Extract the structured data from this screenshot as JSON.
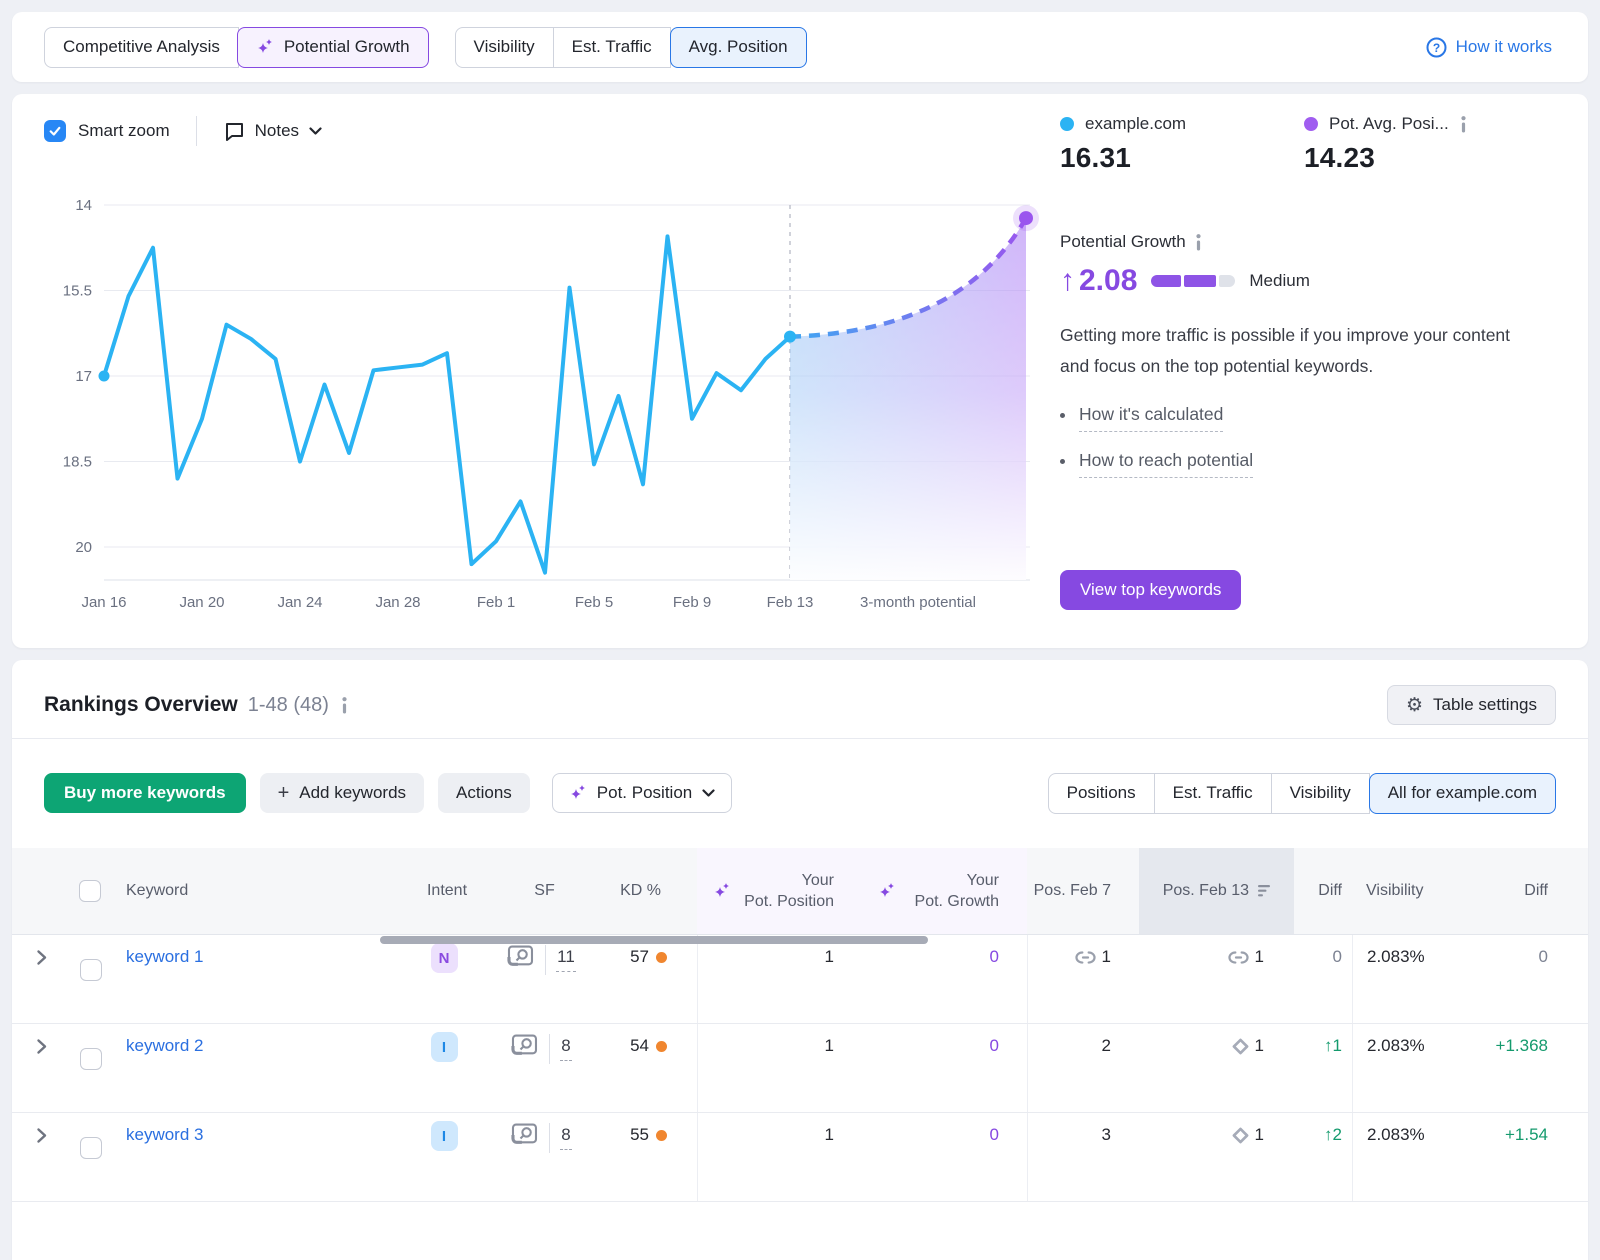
{
  "colors": {
    "accent_purple": "#8649e1",
    "accent_blue": "#2977e6",
    "chart_blue": "#2bb3f3",
    "chart_purple": "#9a55ee",
    "buy_green": "#0da574",
    "diff_green": "#149a6d",
    "kd_orange": "#f0862f"
  },
  "top_toolbar": {
    "analysis_tabs": [
      {
        "label": "Competitive Analysis",
        "selected": false
      },
      {
        "label": "Potential Growth",
        "selected": true
      }
    ],
    "metric_tabs": [
      {
        "label": "Visibility",
        "selected": false
      },
      {
        "label": "Est. Traffic",
        "selected": false
      },
      {
        "label": "Avg. Position",
        "selected": true
      }
    ],
    "help_link": "How it works"
  },
  "chart_section": {
    "smart_zoom_label": "Smart zoom",
    "notes_label": "Notes",
    "legend": [
      {
        "name": "example.com",
        "value": "16.31",
        "color": "#2bb3f3"
      },
      {
        "name": "Pot. Avg. Posi...",
        "value": "14.23",
        "color": "#a05df0"
      }
    ],
    "growth": {
      "title": "Potential Growth",
      "arrow": "↑",
      "value": "2.08",
      "level": "Medium",
      "description": "Getting more traffic is possible if you improve your content and focus on the top potential keywords.",
      "links": [
        "How it's calculated",
        "How to reach potential"
      ],
      "cta": "View top keywords"
    }
  },
  "chart_data": {
    "type": "line",
    "title": "Avg. Position trend with 3-month potential",
    "y_inverted": true,
    "y_ticks": [
      "14",
      "15.5",
      "17",
      "18.5",
      "20"
    ],
    "x_ticks": [
      "Jan 16",
      "Jan 20",
      "Jan 24",
      "Jan 28",
      "Feb 1",
      "Feb 5",
      "Feb 9",
      "Feb 13",
      "3-month potential"
    ],
    "series": [
      {
        "name": "example.com",
        "color": "#2bb3f3",
        "values": [
          17.0,
          15.6,
          14.75,
          18.8,
          17.75,
          16.1,
          16.35,
          16.7,
          18.5,
          17.15,
          18.35,
          16.9,
          16.85,
          16.8,
          16.6,
          20.3,
          19.9,
          19.2,
          20.45,
          15.45,
          18.55,
          17.35,
          18.9,
          14.55,
          17.75,
          16.95,
          17.25,
          16.7,
          16.31
        ]
      },
      {
        "name": "Pot. Avg. Position",
        "type": "projection",
        "color": "#9a55ee",
        "from": 16.31,
        "to": 14.23,
        "start_label": "Feb 13",
        "end_label": "3-month potential"
      }
    ],
    "current_value": 16.31,
    "potential_value": 14.23
  },
  "rankings": {
    "title": "Rankings Overview",
    "range": "1-48 (48)",
    "table_settings": "Table settings",
    "buy_button": "Buy more keywords",
    "add_button": "Add keywords",
    "actions_button": "Actions",
    "pot_position_dropdown": "Pot. Position",
    "filter_tabs": [
      {
        "label": "Positions",
        "selected": false
      },
      {
        "label": "Est. Traffic",
        "selected": false
      },
      {
        "label": "Visibility",
        "selected": false
      },
      {
        "label": "All for example.com",
        "selected": true
      }
    ],
    "columns": {
      "keyword": "Keyword",
      "intent": "Intent",
      "sf": "SF",
      "kd": "KD %",
      "pot_position": {
        "line1": "Your",
        "line2": "Pot. Position"
      },
      "pot_growth": {
        "line1": "Your",
        "line2": "Pot. Growth"
      },
      "pos_feb7": "Pos. Feb 7",
      "pos_feb13": "Pos. Feb 13",
      "diff": "Diff",
      "visibility": "Visibility",
      "diff2": "Diff"
    },
    "rows": [
      {
        "keyword": "keyword 1",
        "intent": "N",
        "sf": "11",
        "kd": "57",
        "pot_position": "1",
        "pot_growth": "0",
        "pos_feb7": "1",
        "pos_feb7_icon": "link",
        "pos_feb13": "1",
        "pos_feb13_icon": "link",
        "diff": "0",
        "diff_dir": "flat",
        "visibility": "2.083%",
        "diff2": "0",
        "diff2_dir": "flat"
      },
      {
        "keyword": "keyword 2",
        "intent": "I",
        "sf": "8",
        "kd": "54",
        "pot_position": "1",
        "pot_growth": "0",
        "pos_feb7": "2",
        "pos_feb7_icon": "",
        "pos_feb13": "1",
        "pos_feb13_icon": "diamond",
        "diff": "↑1",
        "diff_dir": "up",
        "visibility": "2.083%",
        "diff2": "+1.368",
        "diff2_dir": "up"
      },
      {
        "keyword": "keyword 3",
        "intent": "I",
        "sf": "8",
        "kd": "55",
        "pot_position": "1",
        "pot_growth": "0",
        "pos_feb7": "3",
        "pos_feb7_icon": "",
        "pos_feb13": "1",
        "pos_feb13_icon": "diamond",
        "diff": "↑2",
        "diff_dir": "up",
        "visibility": "2.083%",
        "diff2": "+1.54",
        "diff2_dir": "up"
      }
    ]
  }
}
